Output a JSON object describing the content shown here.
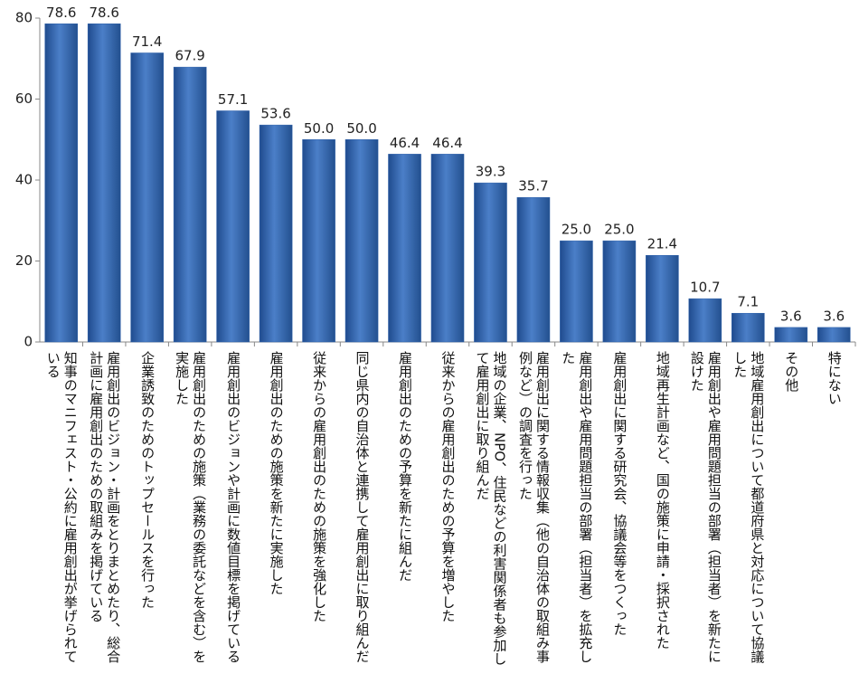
{
  "chart_data": {
    "type": "bar",
    "categories": [
      "知事のマニフェスト・公約に雇用創出が挙げられている",
      "雇用創出のビジョン・計画をとりまとめたり、総合計画に雇用創出のための取組みを掲げている",
      "企業誘致のためのトップセールスを行った",
      "雇用創出のための施策（業務の委託などを含む）を実施した",
      "雇用創出のビジョンや計画に数値目標を掲げている",
      "雇用創出のための施策を新たに実施した",
      "従来からの雇用創出のための施策を強化した",
      "同じ県内の自治体と連携して雇用創出に取り組んだ",
      "雇用創出のための予算を新たに組んだ",
      "従来からの雇用創出のための予算を増やした",
      "地域の企業、NPO、住民などの利害関係者も参加して雇用創出に取り組んだ",
      "雇用創出に関する情報収集（他の自治体の取組み事例など）の調査を行った",
      "雇用創出や雇用問題担当の部署（担当者）を拡充した",
      "雇用創出に関する研究会、協議会等をつくった",
      "地域再生計画など、国の施策に申請・採択された",
      "雇用創出や雇用問題担当の部署（担当者）を新たに設けた",
      "地域雇用創出について都道府県と対応について協議した",
      "その他",
      "特にない"
    ],
    "values": [
      78.6,
      78.6,
      71.4,
      67.9,
      57.1,
      53.6,
      50,
      50,
      46.4,
      46.4,
      39.3,
      35.7,
      25,
      25,
      21.4,
      10.7,
      7.1,
      3.6,
      3.6
    ],
    "value_labels": [
      "78.6",
      "78.6",
      "71.4",
      "67.9",
      "57.1",
      "53.6",
      "50.0",
      "50.0",
      "46.4",
      "46.4",
      "39.3",
      "35.7",
      "25.0",
      "25.0",
      "21.4",
      "10.7",
      "7.1",
      "3.6",
      "3.6"
    ],
    "color": "#2f62ab",
    "ylim": [
      0,
      80
    ],
    "yticks": [
      0,
      20,
      40,
      60,
      80
    ]
  }
}
